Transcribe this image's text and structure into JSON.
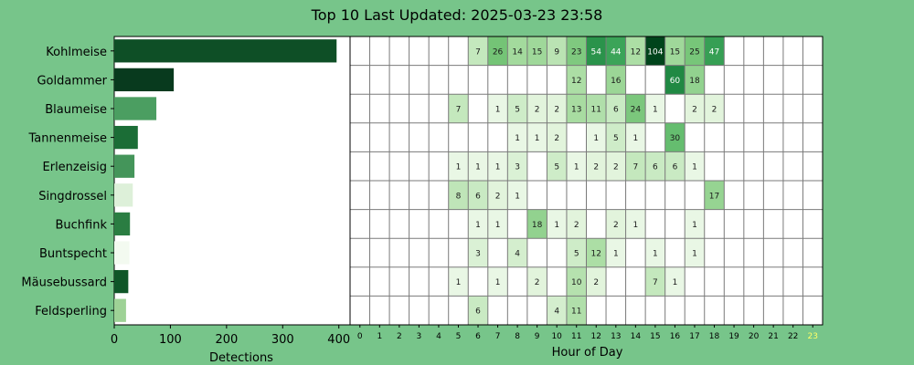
{
  "chart_data": [
    {
      "type": "bar",
      "orientation": "horizontal",
      "title": "Top 10 Last Updated: 2025-03-23 23:58",
      "xlabel": "Detections",
      "ylabel": "",
      "xlim": [
        0,
        420
      ],
      "xticks": [
        "0",
        "100",
        "200",
        "300",
        "400"
      ],
      "categories": [
        "Kohlmeise",
        "Goldammer",
        "Blaumeise",
        "Tannenmeise",
        "Erlenzeisig",
        "Singdrossel",
        "Buchfink",
        "Buntspecht",
        "Mäusebussard",
        "Feldsperling"
      ],
      "values": [
        396,
        106,
        75,
        42,
        36,
        33,
        28,
        27,
        25,
        21
      ],
      "bar_colors": [
        "#0e4f26",
        "#083a1e",
        "#4b9e61",
        "#1b6d36",
        "#44955a",
        "#ddf0d9",
        "#2a7d42",
        "#f3faf0",
        "#0f5628",
        "#9ed296"
      ],
      "grid": false
    },
    {
      "type": "heatmap",
      "xlabel": "Hour of Day",
      "ylabel": "",
      "hours": [
        "0",
        "1",
        "2",
        "3",
        "4",
        "5",
        "6",
        "7",
        "8",
        "9",
        "10",
        "11",
        "12",
        "13",
        "14",
        "15",
        "16",
        "17",
        "18",
        "19",
        "20",
        "21",
        "22",
        "23"
      ],
      "current_hour": "23",
      "current_hour_color": "#ffff66",
      "rows": [
        "Kohlmeise",
        "Goldammer",
        "Blaumeise",
        "Tannenmeise",
        "Erlenzeisig",
        "Singdrossel",
        "Buchfink",
        "Buntspecht",
        "Mäusebussard",
        "Feldsperling"
      ],
      "values": [
        [
          0,
          0,
          0,
          0,
          0,
          0,
          7,
          26,
          14,
          15,
          9,
          23,
          54,
          44,
          12,
          104,
          15,
          25,
          47,
          0,
          0,
          0,
          0,
          0
        ],
        [
          0,
          0,
          0,
          0,
          0,
          0,
          0,
          0,
          0,
          0,
          0,
          12,
          0,
          16,
          0,
          0,
          60,
          18,
          0,
          0,
          0,
          0,
          0,
          0
        ],
        [
          0,
          0,
          0,
          0,
          0,
          7,
          0,
          1,
          5,
          2,
          2,
          13,
          11,
          6,
          24,
          1,
          0,
          2,
          2,
          0,
          0,
          0,
          0,
          0
        ],
        [
          0,
          0,
          0,
          0,
          0,
          0,
          0,
          0,
          1,
          1,
          2,
          0,
          1,
          5,
          1,
          0,
          30,
          0,
          0,
          0,
          0,
          0,
          0,
          0
        ],
        [
          0,
          0,
          0,
          0,
          0,
          1,
          1,
          1,
          3,
          0,
          5,
          1,
          2,
          2,
          7,
          6,
          6,
          1,
          0,
          0,
          0,
          0,
          0,
          0
        ],
        [
          0,
          0,
          0,
          0,
          0,
          8,
          6,
          2,
          1,
          0,
          0,
          0,
          0,
          0,
          0,
          0,
          0,
          0,
          17,
          0,
          0,
          0,
          0,
          0
        ],
        [
          0,
          0,
          0,
          0,
          0,
          0,
          1,
          1,
          0,
          18,
          1,
          2,
          0,
          2,
          1,
          0,
          0,
          1,
          0,
          0,
          0,
          0,
          0,
          0
        ],
        [
          0,
          0,
          0,
          0,
          0,
          0,
          3,
          0,
          4,
          0,
          0,
          5,
          12,
          1,
          0,
          1,
          0,
          1,
          0,
          0,
          0,
          0,
          0,
          0
        ],
        [
          0,
          0,
          0,
          0,
          0,
          1,
          0,
          1,
          0,
          2,
          0,
          10,
          2,
          0,
          0,
          7,
          1,
          0,
          0,
          0,
          0,
          0,
          0,
          0
        ],
        [
          0,
          0,
          0,
          0,
          0,
          0,
          6,
          0,
          0,
          0,
          4,
          11,
          0,
          0,
          0,
          0,
          0,
          0,
          0,
          0,
          0,
          0,
          0,
          0
        ]
      ],
      "colormap": "Greens",
      "grid": true
    }
  ]
}
